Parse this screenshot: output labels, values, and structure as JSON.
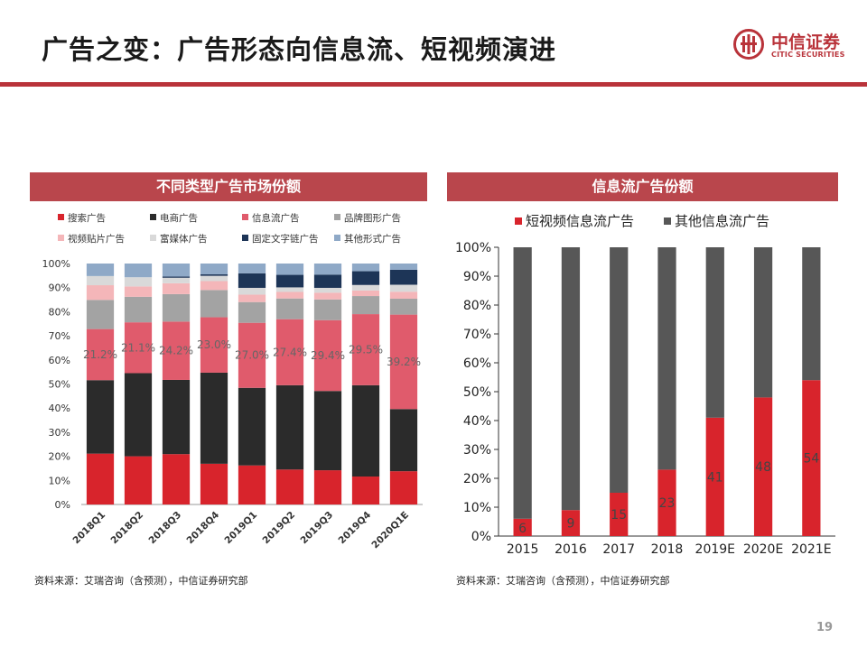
{
  "page": {
    "title": "广告之变：广告形态向信息流、短视频演进",
    "logo": {
      "cn": "中信证券",
      "en": "CITIC SECURITIES"
    },
    "page_number": "19",
    "left_panel_title": "不同类型广告市场份额",
    "right_panel_title": "信息流广告份额",
    "left_source": "资料来源：艾瑞咨询（含预测），中信证券研究部",
    "right_source": "资料来源：艾瑞咨询（含预测），中信证券研究部"
  },
  "colors": {
    "brand": "#b9333a",
    "panel_header": "#b9464c"
  },
  "chart_data": [
    {
      "type": "bar",
      "stacked": true,
      "categories": [
        "2018Q1",
        "2018Q2",
        "2018Q3",
        "2018Q4",
        "2019Q1",
        "2019Q2",
        "2019Q3",
        "2019Q4",
        "2020Q1E"
      ],
      "ylim": [
        0,
        100
      ],
      "yticks": [
        "0%",
        "10%",
        "20%",
        "30%",
        "40%",
        "50%",
        "60%",
        "70%",
        "80%",
        "90%",
        "100%"
      ],
      "legend_position": "top",
      "grid": false,
      "series": [
        {
          "name": "搜索广告",
          "color": "#d8242c",
          "values": [
            21.1,
            20.0,
            20.9,
            16.9,
            16.2,
            14.5,
            14.2,
            11.6,
            13.8
          ]
        },
        {
          "name": "电商广告",
          "color": "#2b2b2b",
          "values": [
            30.5,
            34.5,
            30.8,
            37.8,
            32.2,
            35.0,
            32.9,
            37.9,
            25.8
          ]
        },
        {
          "name": "信息流广告",
          "color": "#e05b6c",
          "values": [
            21.2,
            21.1,
            24.2,
            23.0,
            27.0,
            27.4,
            29.4,
            29.5,
            39.2
          ]
        },
        {
          "name": "品牌图形广告",
          "color": "#a3a3a3",
          "values": [
            12.1,
            10.6,
            11.4,
            11.3,
            8.6,
            8.6,
            8.6,
            7.5,
            6.6
          ]
        },
        {
          "name": "视频贴片广告",
          "color": "#f4b6b9",
          "values": [
            6.1,
            4.3,
            4.5,
            3.7,
            3.1,
            2.7,
            2.8,
            2.3,
            2.9
          ]
        },
        {
          "name": "富媒体广告",
          "color": "#d9d9d9",
          "values": [
            3.8,
            3.8,
            2.3,
            2.2,
            2.8,
            1.9,
            2.0,
            2.3,
            2.9
          ]
        },
        {
          "name": "固定文字链广告",
          "color": "#1d3557",
          "values": [
            0.0,
            0.0,
            0.5,
            0.6,
            6.0,
            5.2,
            5.5,
            5.7,
            6.2
          ]
        },
        {
          "name": "其他形式广告",
          "color": "#8fa9c7",
          "values": [
            5.2,
            5.7,
            5.4,
            4.5,
            4.1,
            4.7,
            4.6,
            3.2,
            2.6
          ]
        }
      ],
      "labeled_series": "信息流广告",
      "data_labels": [
        "21.2%",
        "21.1%",
        "24.2%",
        "23.0%",
        "27.0%",
        "27.4%",
        "29.4%",
        "29.5%",
        "39.2%"
      ]
    },
    {
      "type": "bar",
      "stacked": true,
      "categories": [
        "2015",
        "2016",
        "2017",
        "2018",
        "2019E",
        "2020E",
        "2021E"
      ],
      "ylim": [
        0,
        100
      ],
      "yticks": [
        "0%",
        "10%",
        "20%",
        "30%",
        "40%",
        "50%",
        "60%",
        "70%",
        "80%",
        "90%",
        "100%"
      ],
      "legend_position": "top",
      "grid": false,
      "series": [
        {
          "name": "短视频信息流广告",
          "color": "#d8242c",
          "values": [
            6,
            9,
            15,
            23,
            41,
            48,
            54
          ]
        },
        {
          "name": "其他信息流广告",
          "color": "#575757",
          "values": [
            94,
            91,
            85,
            77,
            59,
            52,
            46
          ]
        }
      ],
      "data_labels": [
        "6",
        "9",
        "15",
        "23",
        "41",
        "48",
        "54"
      ]
    }
  ]
}
